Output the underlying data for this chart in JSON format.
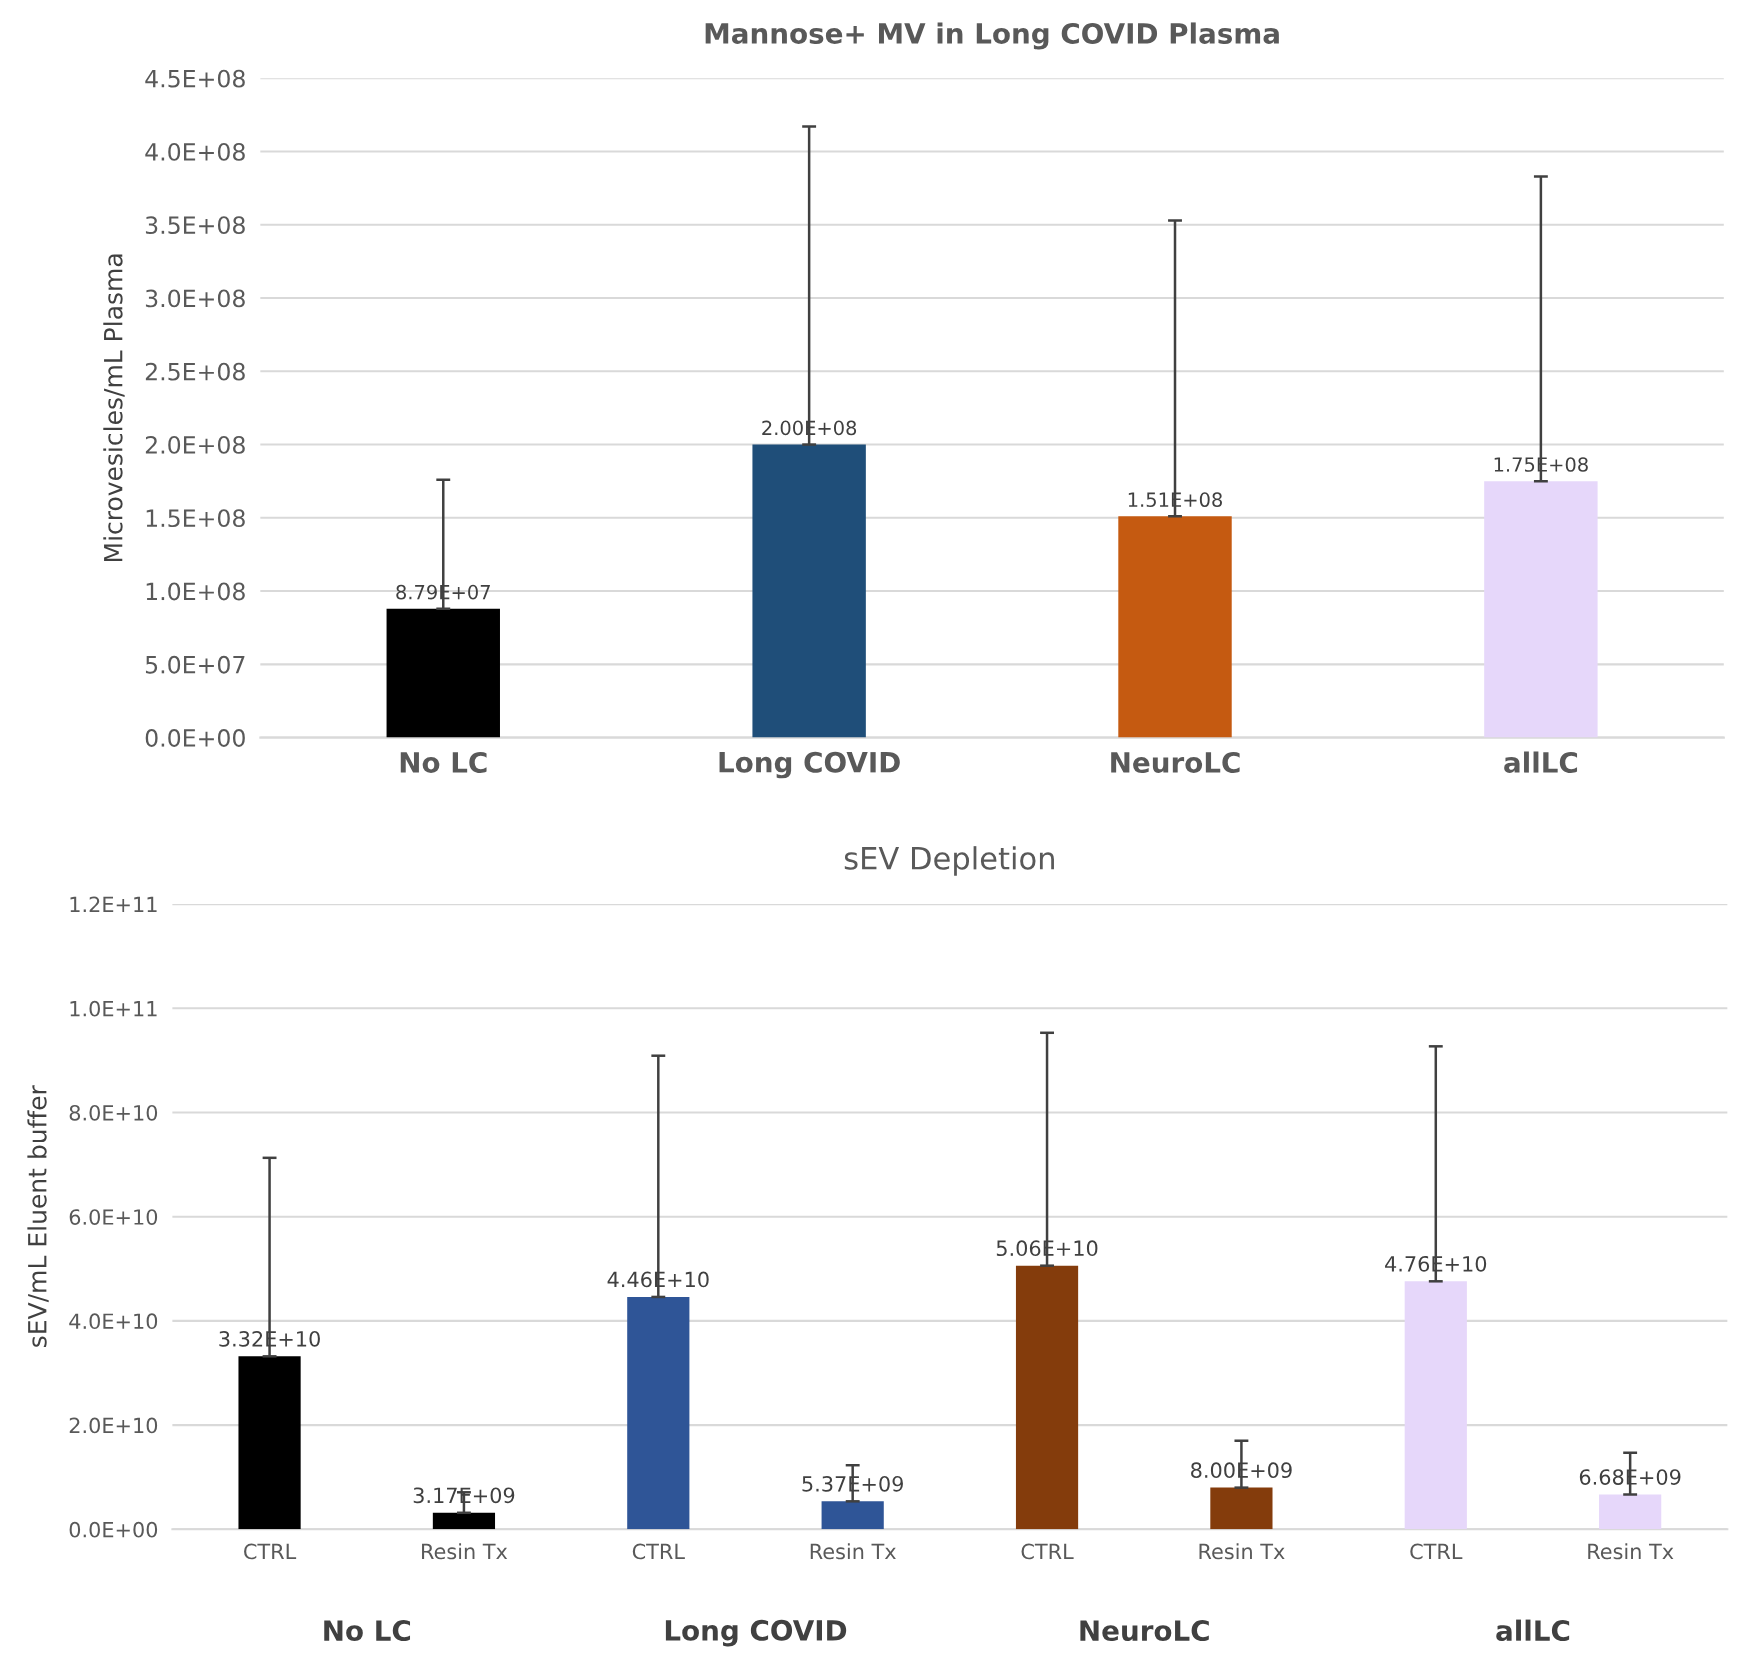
{
  "chart_data": [
    {
      "type": "bar",
      "title": "Mannose+ MV in Long COVID Plasma",
      "ylabel": "Microvesicles/mL Plasma",
      "categories": [
        "No LC",
        "Long COVID",
        "NeuroLC",
        "allLC"
      ],
      "values": [
        87900000,
        200000000,
        151000000,
        175000000
      ],
      "colors": [
        "#000000",
        "#1f4e79",
        "#c55a11",
        "#e6d7fa"
      ],
      "errors": [
        [
          87900000,
          176000000
        ],
        [
          200000000,
          417000000
        ],
        [
          151000000,
          353000000
        ],
        [
          175000000,
          383000000
        ]
      ],
      "value_labels": [
        "8.79E+07",
        "2.00E+08",
        "1.51E+08",
        "1.75E+08"
      ],
      "ylim": [
        0,
        450000000
      ],
      "yticks": [
        {
          "value": 0,
          "label": "0.0E+00"
        },
        {
          "value": 50000000,
          "label": "5.0E+07"
        },
        {
          "value": 100000000,
          "label": "1.0E+08"
        },
        {
          "value": 150000000,
          "label": "1.5E+08"
        },
        {
          "value": 200000000,
          "label": "2.0E+08"
        },
        {
          "value": 250000000,
          "label": "2.5E+08"
        },
        {
          "value": 300000000,
          "label": "3.0E+08"
        },
        {
          "value": 350000000,
          "label": "3.5E+08"
        },
        {
          "value": 400000000,
          "label": "4.0E+08"
        },
        {
          "value": 450000000,
          "label": "4.5E+08"
        }
      ],
      "grid": "y",
      "legend": false
    },
    {
      "type": "bar",
      "title": "sEV Depletion",
      "ylabel": "sEV/mL Eluent buffer",
      "categories": [
        "CTRL",
        "Resin Tx",
        "CTRL",
        "Resin Tx",
        "CTRL",
        "Resin Tx",
        "CTRL",
        "Resin Tx"
      ],
      "values": [
        33200000000,
        3170000000,
        44600000000,
        5370000000,
        50600000000,
        8000000000,
        47600000000,
        6680000000
      ],
      "colors": [
        "#000000",
        "#000000",
        "#2f5597",
        "#2f5597",
        "#843c0c",
        "#843c0c",
        "#e6d7fa",
        "#e6d7fa"
      ],
      "errors": [
        [
          33200000000,
          71300000000
        ],
        [
          3170000000,
          7100000000
        ],
        [
          44600000000,
          90900000000
        ],
        [
          5370000000,
          12300000000
        ],
        [
          50600000000,
          95300000000
        ],
        [
          8000000000,
          17000000000
        ],
        [
          47600000000,
          92700000000
        ],
        [
          6680000000,
          14700000000
        ]
      ],
      "value_labels": [
        "3.32E+10",
        "3.17E+09",
        "4.46E+10",
        "5.37E+09",
        "5.06E+10",
        "8.00E+09",
        "4.76E+10",
        "6.68E+09"
      ],
      "annotations": [
        "No LC",
        "Long COVID",
        "NeuroLC",
        "allLC"
      ],
      "ylim": [
        0,
        120000000000
      ],
      "yticks": [
        {
          "value": 0,
          "label": "0.0E+00"
        },
        {
          "value": 20000000000,
          "label": "2.0E+10"
        },
        {
          "value": 40000000000,
          "label": "4.0E+10"
        },
        {
          "value": 60000000000,
          "label": "6.0E+10"
        },
        {
          "value": 80000000000,
          "label": "8.0E+10"
        },
        {
          "value": 100000000000,
          "label": "1.0E+11"
        },
        {
          "value": 120000000000,
          "label": "1.2E+11"
        }
      ],
      "grid": "y",
      "legend": false
    }
  ]
}
